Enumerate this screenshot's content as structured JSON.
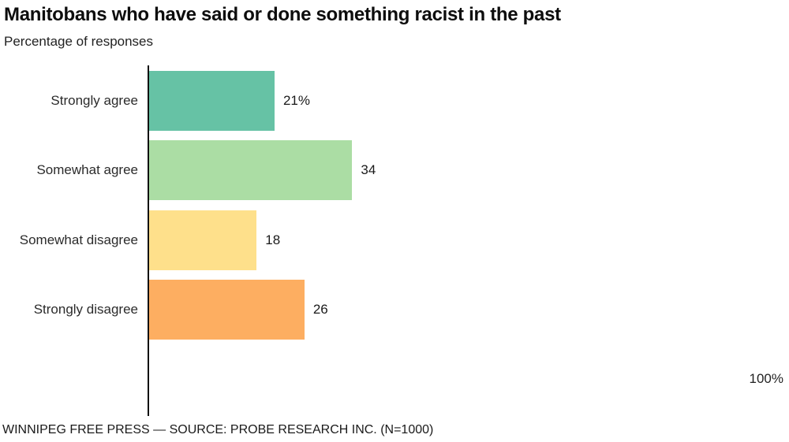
{
  "header": {
    "title": "Manitobans who have said or done something racist in the past",
    "subtitle": "Percentage of responses"
  },
  "axis": {
    "max_tick_label": "100%"
  },
  "footer": {
    "credit": "WINNIPEG FREE PRESS — SOURCE: PROBE RESEARCH INC. (N=1000)"
  },
  "chart_data": {
    "type": "bar",
    "orientation": "horizontal",
    "title": "Manitobans who have said or done something racist in the past",
    "subtitle": "Percentage of responses",
    "categories": [
      "Strongly agree",
      "Somewhat agree",
      "Somewhat disagree",
      "Strongly disagree"
    ],
    "values": [
      21,
      34,
      18,
      26
    ],
    "value_labels": [
      "21%",
      "34",
      "18",
      "26"
    ],
    "bar_colors": [
      "#66c2a5",
      "#abdda4",
      "#fee08b",
      "#fdae61"
    ],
    "xlabel": "",
    "ylabel": "",
    "xlim": [
      0,
      100
    ],
    "x_tick_labels": [
      "100%"
    ],
    "grid": false,
    "legend": false,
    "source": "WINNIPEG FREE PRESS — SOURCE: PROBE RESEARCH INC. (N=1000)"
  }
}
